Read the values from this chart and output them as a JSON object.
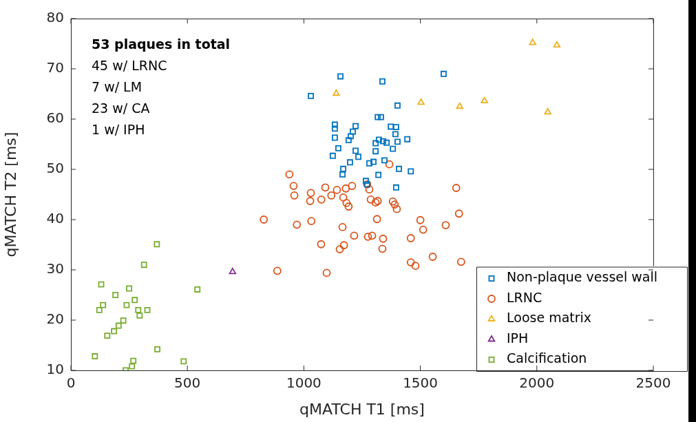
{
  "chart_data": {
    "type": "scatter",
    "xlabel": "qMATCH T1 [ms]",
    "ylabel": "qMATCH T2 [ms]",
    "xlim": [
      0,
      2500
    ],
    "xticks": [
      0,
      500,
      1000,
      1500,
      2000,
      2500
    ],
    "ylim": [
      10,
      80
    ],
    "yticks": [
      10,
      20,
      30,
      40,
      50,
      60,
      70,
      80
    ],
    "grid": false,
    "legend": "bottom right",
    "annotations": [
      "53 plaques in total",
      "45 w/ LRNC",
      "7 w/ LM",
      "23 w/ CA",
      "1 w/ IPH"
    ],
    "series": [
      {
        "name": "Non-plaque vessel wall",
        "color": "#0072bd",
        "marker": "square",
        "x": [
          1030,
          1157,
          1337,
          1600,
          1133,
          1133,
          1133,
          1222,
          1210,
          1201,
          1192,
          1148,
          1124,
          1222,
          1234,
          1169,
          1166,
          1198,
          1281,
          1299,
          1317,
          1331,
          1402,
          1373,
          1396,
          1393,
          1402,
          1444,
          1308,
          1322,
          1340,
          1355,
          1308,
          1346,
          1382,
          1408,
          1459,
          1320,
          1266,
          1272,
          1396
        ],
        "values": [
          64.6,
          68.5,
          67.5,
          69.0,
          58.9,
          58.1,
          56.3,
          58.6,
          57.5,
          56.6,
          55.8,
          54.2,
          52.7,
          53.7,
          52.5,
          50.1,
          49.0,
          51.4,
          51.2,
          51.5,
          60.4,
          60.4,
          62.7,
          58.5,
          58.4,
          57.0,
          55.5,
          56.0,
          55.2,
          55.9,
          55.6,
          55.3,
          53.6,
          51.8,
          54.1,
          50.1,
          49.6,
          48.9,
          47.7,
          47.0,
          46.4
        ]
      },
      {
        "name": "LRNC",
        "color": "#d95319",
        "marker": "circle",
        "x": [
          938,
          956,
          959,
          828,
          970,
          1032,
          1030,
          1027,
          1075,
          1092,
          1118,
          1142,
          1180,
          1207,
          1169,
          1183,
          1192,
          1166,
          1074,
          1154,
          1172,
          1216,
          1275,
          1293,
          1314,
          1272,
          1281,
          1287,
          1308,
          1317,
          1340,
          1337,
          1367,
          1382,
          1390,
          1399,
          886,
          1098,
          1459,
          1459,
          1479,
          1500,
          1512,
          1553,
          1609,
          1654,
          1666,
          1675
        ],
        "values": [
          49.0,
          46.7,
          44.8,
          40.0,
          39.0,
          39.7,
          45.3,
          43.7,
          44.0,
          46.4,
          44.8,
          45.9,
          46.2,
          46.7,
          44.4,
          43.3,
          42.6,
          38.5,
          35.1,
          34.1,
          34.9,
          36.8,
          36.6,
          36.8,
          40.1,
          47.0,
          46.0,
          44.0,
          43.4,
          43.7,
          36.2,
          34.2,
          51.0,
          43.6,
          43.0,
          42.1,
          29.8,
          29.4,
          36.3,
          31.5,
          30.8,
          39.9,
          38.0,
          32.6,
          38.9,
          46.3,
          41.2,
          31.6
        ]
      },
      {
        "name": "Loose matrix",
        "color": "#edb120",
        "marker": "triangle",
        "x": [
          1139,
          1503,
          1669,
          1775,
          1982,
          2086,
          2047
        ],
        "values": [
          65.1,
          63.3,
          62.5,
          63.6,
          75.2,
          74.7,
          61.4
        ]
      },
      {
        "name": "IPH",
        "color": "#7e2f8e",
        "marker": "triangle",
        "x": [
          694
        ],
        "values": [
          29.6
        ]
      },
      {
        "name": "Calcification",
        "color": "#77ac30",
        "marker": "square",
        "x": [
          369,
          314,
          130,
          250,
          191,
          543,
          138,
          122,
          239,
          274,
          289,
          295,
          328,
          225,
          205,
          185,
          156,
          103,
          371,
          484,
          268,
          262,
          235
        ],
        "values": [
          35.1,
          31.0,
          27.1,
          26.3,
          25.0,
          26.1,
          23.0,
          22.0,
          23.0,
          24.0,
          22.0,
          20.9,
          22.0,
          19.9,
          18.9,
          17.8,
          16.9,
          12.8,
          14.2,
          11.8,
          11.9,
          10.8,
          10
        ]
      }
    ]
  }
}
